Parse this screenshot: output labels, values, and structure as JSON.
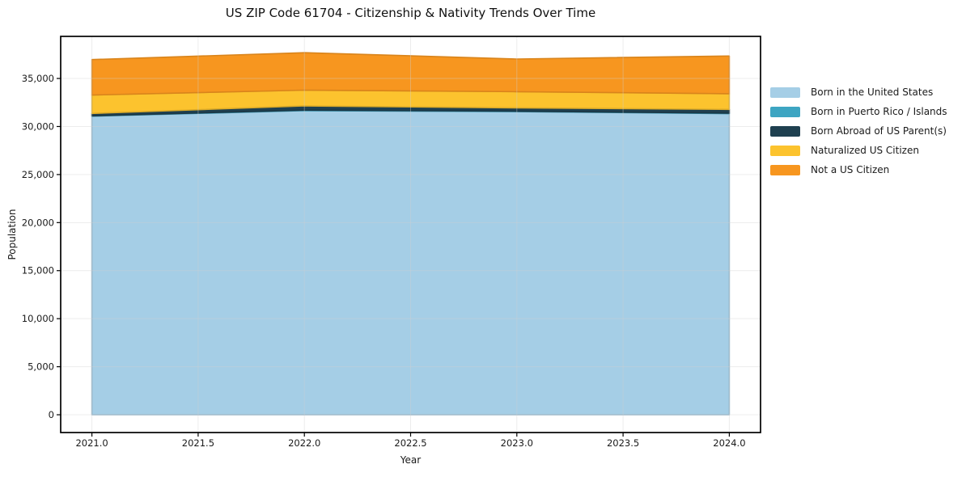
{
  "chart_data": {
    "type": "area",
    "stacked": true,
    "title": "US ZIP Code 61704 - Citizenship & Nativity Trends Over Time",
    "xlabel": "Year",
    "ylabel": "Population",
    "x": [
      2021,
      2022,
      2023,
      2024
    ],
    "series": [
      {
        "name": "Born in the United States",
        "color": "#a5cee6",
        "values": [
          31080,
          31650,
          31550,
          31340
        ]
      },
      {
        "name": "Born in Puerto Rico / Islands",
        "color": "#3da5c2",
        "values": [
          30,
          55,
          45,
          50
        ]
      },
      {
        "name": "Born Abroad of US Parent(s)",
        "color": "#1f4050",
        "values": [
          250,
          440,
          340,
          390
        ]
      },
      {
        "name": "Naturalized US Citizen",
        "color": "#fcc32e",
        "values": [
          1915,
          1640,
          1690,
          1630
        ]
      },
      {
        "name": "Not a US Citizen",
        "color": "#f7961f",
        "values": [
          3690,
          3900,
          3400,
          3930
        ]
      }
    ],
    "totals": [
      36965,
      37685,
      37025,
      37340
    ],
    "xlim": [
      2020.853,
      2024.147
    ],
    "ylim": [
      -1850,
      39380
    ],
    "xticks": {
      "values": [
        2021.0,
        2021.5,
        2022.0,
        2022.5,
        2023.0,
        2023.5,
        2024.0
      ],
      "labels": [
        "2021.0",
        "2021.5",
        "2022.0",
        "2022.5",
        "2023.0",
        "2023.5",
        "2024.0"
      ]
    },
    "yticks": {
      "values": [
        0,
        5000,
        10000,
        15000,
        20000,
        25000,
        30000,
        35000
      ],
      "labels": [
        "0",
        "5,000",
        "10,000",
        "15,000",
        "20,000",
        "25,000",
        "30,000",
        "35,000"
      ]
    },
    "grid": true,
    "legend_position": "right-outside",
    "colors": {
      "background": "#ffffff",
      "grid": "#d0d0d0",
      "spine": "#000000",
      "text": "#1a1a1a"
    }
  }
}
